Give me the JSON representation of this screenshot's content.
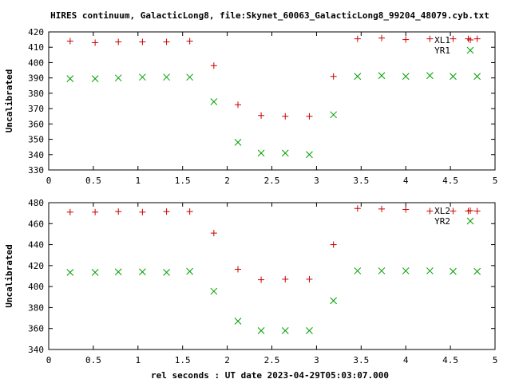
{
  "title": "HIRES continuum, GalacticLong8, file:Skynet_60063_GalacticLong8_99204_48079.cyb.txt",
  "xlabel": "rel seconds : UT date 2023-04-29T05:03:07.000",
  "colors": {
    "red": "#cc0000",
    "green": "#00a000",
    "axis": "#000000"
  },
  "chart_data": [
    {
      "type": "scatter",
      "ylabel": "Uncalibrated",
      "xlim": [
        0,
        5
      ],
      "ylim": [
        330,
        420
      ],
      "xticks": [
        "0",
        "0.5",
        "1",
        "1.5",
        "2",
        "2.5",
        "3",
        "3.5",
        "4",
        "4.5",
        "5"
      ],
      "yticks": [
        "330",
        "340",
        "350",
        "360",
        "370",
        "380",
        "390",
        "400",
        "410",
        "420"
      ],
      "legend_position": "top-right",
      "series": [
        {
          "name": "XL1",
          "marker": "plus",
          "color": "#cc0000",
          "x": [
            0.24,
            0.52,
            0.78,
            1.05,
            1.32,
            1.58,
            1.85,
            2.12,
            2.38,
            2.65,
            2.92,
            3.19,
            3.46,
            3.73,
            4.0,
            4.27,
            4.53,
            4.7,
            4.8
          ],
          "y": [
            414,
            413,
            413.5,
            413.5,
            413.5,
            414,
            398,
            372.5,
            365.5,
            365,
            365,
            391,
            415.5,
            416,
            415,
            415.5,
            415.5,
            415.5,
            415.5
          ]
        },
        {
          "name": "YR1",
          "marker": "cross",
          "color": "#00a000",
          "x": [
            0.24,
            0.52,
            0.78,
            1.05,
            1.32,
            1.58,
            1.85,
            2.12,
            2.38,
            2.65,
            2.92,
            3.19,
            3.46,
            3.73,
            4.0,
            4.27,
            4.53,
            4.8
          ],
          "y": [
            389.5,
            389.5,
            390,
            390.5,
            390.5,
            390.5,
            374.5,
            348,
            341,
            341,
            340,
            366,
            391,
            391.5,
            391,
            391.5,
            391,
            391
          ]
        }
      ]
    },
    {
      "type": "scatter",
      "ylabel": "Uncalibrated",
      "xlim": [
        0,
        5
      ],
      "ylim": [
        340,
        480
      ],
      "xticks": [
        "0",
        "0.5",
        "1",
        "1.5",
        "2",
        "2.5",
        "3",
        "3.5",
        "4",
        "4.5",
        "5"
      ],
      "yticks": [
        "340",
        "360",
        "380",
        "400",
        "420",
        "440",
        "460",
        "480"
      ],
      "legend_position": "top-right",
      "series": [
        {
          "name": "XL2",
          "marker": "plus",
          "color": "#cc0000",
          "x": [
            0.24,
            0.52,
            0.78,
            1.05,
            1.32,
            1.58,
            1.85,
            2.12,
            2.38,
            2.65,
            2.92,
            3.19,
            3.46,
            3.73,
            4.0,
            4.27,
            4.53,
            4.7,
            4.8
          ],
          "y": [
            471,
            471,
            471.5,
            471,
            471.5,
            471.5,
            451,
            416.5,
            406.5,
            407,
            407,
            440,
            474.5,
            474,
            473.5,
            472,
            472,
            472,
            472
          ]
        },
        {
          "name": "YR2",
          "marker": "cross",
          "color": "#00a000",
          "x": [
            0.24,
            0.52,
            0.78,
            1.05,
            1.32,
            1.58,
            1.85,
            2.12,
            2.38,
            2.65,
            2.92,
            3.19,
            3.46,
            3.73,
            4.0,
            4.27,
            4.53,
            4.8
          ],
          "y": [
            413.5,
            413.5,
            414,
            414,
            413.5,
            414.5,
            395.5,
            367,
            358,
            358,
            358,
            386.5,
            415,
            415,
            415,
            415,
            414.5,
            414.5
          ]
        }
      ]
    }
  ]
}
